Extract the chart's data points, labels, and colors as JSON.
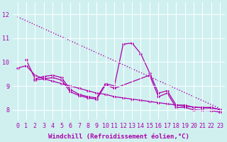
{
  "xlabel": "Windchill (Refroidissement éolien,°C)",
  "background_color": "#d0f0f0",
  "grid_color": "#ffffff",
  "line_color": "#aa00aa",
  "x_ticks": [
    0,
    1,
    2,
    3,
    4,
    5,
    6,
    7,
    8,
    9,
    10,
    11,
    12,
    13,
    14,
    15,
    16,
    17,
    18,
    19,
    20,
    21,
    22,
    23
  ],
  "ylim": [
    7.6,
    12.5
  ],
  "xlim": [
    -0.5,
    23.5
  ],
  "series": [
    {
      "x": [
        0,
        23
      ],
      "y": [
        11.9,
        8.05
      ],
      "linestyle": "dotted",
      "marker": null,
      "linewidth": 1.0
    },
    {
      "x": [
        1,
        2,
        3,
        4,
        5,
        6,
        7,
        8,
        9,
        10,
        11,
        12,
        13,
        14,
        15,
        16,
        17,
        18,
        19,
        20,
        21,
        22,
        23
      ],
      "y": [
        10.1,
        9.3,
        9.4,
        9.45,
        9.35,
        8.85,
        8.65,
        8.55,
        8.5,
        9.1,
        9.0,
        10.75,
        10.8,
        10.35,
        9.55,
        8.7,
        8.8,
        8.2,
        8.2,
        8.1,
        8.1,
        8.1,
        8.0
      ],
      "linestyle": "solid",
      "marker": "D",
      "linewidth": 0.9
    },
    {
      "x": [
        2,
        3,
        4,
        5,
        6,
        7,
        8,
        9,
        10,
        11,
        15,
        16,
        17,
        18,
        19,
        20,
        21,
        22,
        23
      ],
      "y": [
        9.25,
        9.3,
        9.35,
        9.25,
        8.75,
        8.6,
        8.5,
        8.45,
        9.05,
        8.9,
        9.45,
        8.55,
        8.7,
        8.1,
        8.1,
        8.0,
        7.98,
        7.97,
        7.9
      ],
      "linestyle": "solid",
      "marker": "D",
      "linewidth": 0.9
    },
    {
      "x": [
        0,
        1,
        2,
        3,
        4,
        5,
        6,
        7,
        8,
        9,
        10,
        11,
        12,
        13,
        14,
        15,
        16,
        17,
        18,
        19,
        20,
        21,
        22,
        23
      ],
      "y": [
        9.75,
        9.85,
        9.45,
        9.3,
        9.2,
        9.1,
        9.0,
        8.9,
        8.8,
        8.7,
        8.65,
        8.55,
        8.5,
        8.45,
        8.4,
        8.35,
        8.3,
        8.25,
        8.2,
        8.15,
        8.12,
        8.08,
        8.07,
        8.02
      ],
      "linestyle": "solid",
      "marker": "D",
      "linewidth": 0.9
    }
  ],
  "yticks": [
    8,
    9,
    10,
    11,
    12
  ],
  "tick_fontsize": 6,
  "label_fontsize": 6.5
}
